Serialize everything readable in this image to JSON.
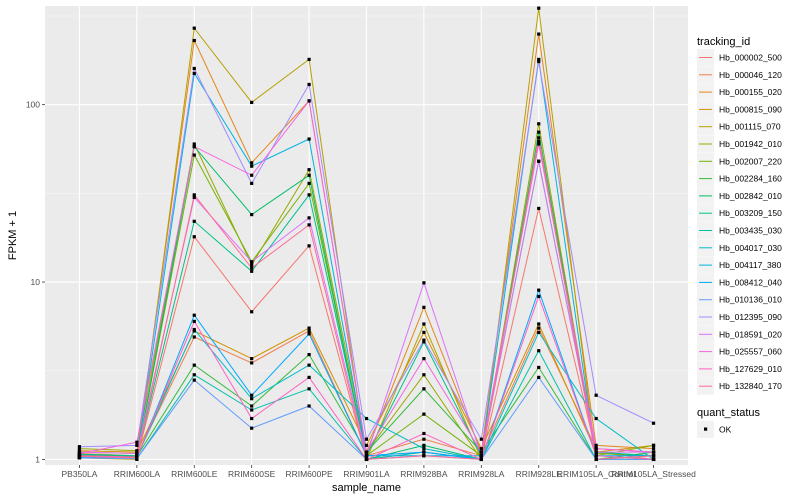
{
  "chart_data": {
    "type": "line",
    "xlabel": "sample_name",
    "ylabel": "FPKM + 1",
    "y_scale": "log10",
    "ylim": [
      0.93,
      360
    ],
    "y_ticks": [
      1,
      10,
      100
    ],
    "grid": true,
    "categories": [
      "PB350LA",
      "RRIM600LA",
      "RRIM600LE",
      "RRIM600SE",
      "RRIM600PE",
      "RRIM901LA",
      "RRIM928BA",
      "RRIM928LA",
      "RRIM928LE",
      "RRIM105LA_Control",
      "RRIM105LA_Stressed"
    ],
    "legend": {
      "title": "tracking_id",
      "position": "right",
      "shape_title": "quant_status",
      "shape_labels": [
        "OK"
      ]
    },
    "series": [
      {
        "name": "Hb_000002_500",
        "color": "#F8766D",
        "values": [
          1.05,
          1.02,
          18,
          6.8,
          16,
          1.0,
          1.1,
          1.0,
          26,
          1.1,
          1.0
        ]
      },
      {
        "name": "Hb_000046_120",
        "color": "#F07E4B",
        "values": [
          1.08,
          1.05,
          4.9,
          3.5,
          5.3,
          1.05,
          1.3,
          1.05,
          5.5,
          1.15,
          1.1
        ]
      },
      {
        "name": "Hb_000155_020",
        "color": "#E4861A",
        "values": [
          1.1,
          1.08,
          230,
          47,
          105,
          1.1,
          7.2,
          1.1,
          250,
          1.2,
          1.15
        ]
      },
      {
        "name": "Hb_000815_090",
        "color": "#D39200",
        "values": [
          1.12,
          1.1,
          5.3,
          3.7,
          5.5,
          1.2,
          5.2,
          1.15,
          5.8,
          1.1,
          1.2
        ]
      },
      {
        "name": "Hb_001115_070",
        "color": "#B79F00",
        "values": [
          1.02,
          1.0,
          270,
          103,
          180,
          1.0,
          5.8,
          1.0,
          350,
          1.0,
          1.0
        ]
      },
      {
        "name": "Hb_001942_010",
        "color": "#9AA800",
        "values": [
          1.15,
          1.12,
          60,
          12.5,
          43,
          1.1,
          3.0,
          1.0,
          78,
          1.05,
          1.2
        ]
      },
      {
        "name": "Hb_002007_220",
        "color": "#74B300",
        "values": [
          1.04,
          1.03,
          52,
          13,
          36,
          1.05,
          1.8,
          1.05,
          62,
          1.08,
          1.05
        ]
      },
      {
        "name": "Hb_002284_160",
        "color": "#36BA3B",
        "values": [
          1.06,
          1.04,
          3.4,
          2.0,
          3.9,
          1.1,
          2.5,
          1.1,
          3.3,
          1.0,
          1.1
        ]
      },
      {
        "name": "Hb_002842_010",
        "color": "#00BE67",
        "values": [
          1.03,
          1.02,
          58,
          24,
          40,
          1.0,
          1.2,
          1.0,
          70,
          1.05,
          1.0
        ]
      },
      {
        "name": "Hb_003209_150",
        "color": "#00C08B",
        "values": [
          1.07,
          1.05,
          22,
          11.5,
          31,
          1.05,
          4.6,
          1.05,
          48,
          1.1,
          1.05
        ]
      },
      {
        "name": "Hb_003435_030",
        "color": "#00C0AA",
        "values": [
          1.02,
          1.01,
          3.0,
          1.9,
          2.5,
          1.0,
          1.1,
          1.0,
          4.1,
          1.0,
          1.0
        ]
      },
      {
        "name": "Hb_004017_030",
        "color": "#00BCC6",
        "values": [
          1.05,
          1.03,
          5.4,
          2.2,
          3.4,
          1.7,
          1.15,
          1.0,
          5.2,
          1.7,
          1.0
        ]
      },
      {
        "name": "Hb_004117_380",
        "color": "#00B4E0",
        "values": [
          1.04,
          1.03,
          150,
          45,
          64,
          1.05,
          1.05,
          1.05,
          180,
          1.0,
          1.05
        ]
      },
      {
        "name": "Hb_008412_040",
        "color": "#00A9FF",
        "values": [
          1.03,
          1.02,
          6.5,
          2.3,
          5.1,
          1.05,
          1.1,
          1.0,
          9.0,
          1.05,
          1.05
        ]
      },
      {
        "name": "Hb_010136_010",
        "color": "#619CFF",
        "values": [
          1.02,
          1.01,
          2.8,
          1.5,
          2.0,
          1.0,
          1.05,
          1.0,
          2.9,
          1.0,
          1.0
        ]
      },
      {
        "name": "Hb_012395_090",
        "color": "#A58AFF",
        "values": [
          1.18,
          1.2,
          160,
          36,
          130,
          1.3,
          4.7,
          1.3,
          175,
          2.3,
          1.6
        ]
      },
      {
        "name": "Hb_018591_020",
        "color": "#DB72FB",
        "values": [
          1.1,
          1.08,
          30,
          13,
          23,
          1.05,
          9.9,
          1.05,
          48,
          1.1,
          1.1
        ]
      },
      {
        "name": "Hb_025557_060",
        "color": "#F564E3",
        "values": [
          1.08,
          1.25,
          58,
          40,
          105,
          1.1,
          3.7,
          1.1,
          60,
          1.15,
          1.1
        ]
      },
      {
        "name": "Hb_127629_010",
        "color": "#FF61C3",
        "values": [
          1.05,
          1.03,
          6.0,
          1.7,
          2.9,
          1.0,
          1.4,
          1.0,
          8.3,
          1.05,
          1.0
        ]
      },
      {
        "name": "Hb_132840_170",
        "color": "#FF6C91",
        "values": [
          1.04,
          1.02,
          31,
          12,
          21,
          1.0,
          1.05,
          1.0,
          65,
          1.0,
          1.05
        ]
      }
    ]
  }
}
